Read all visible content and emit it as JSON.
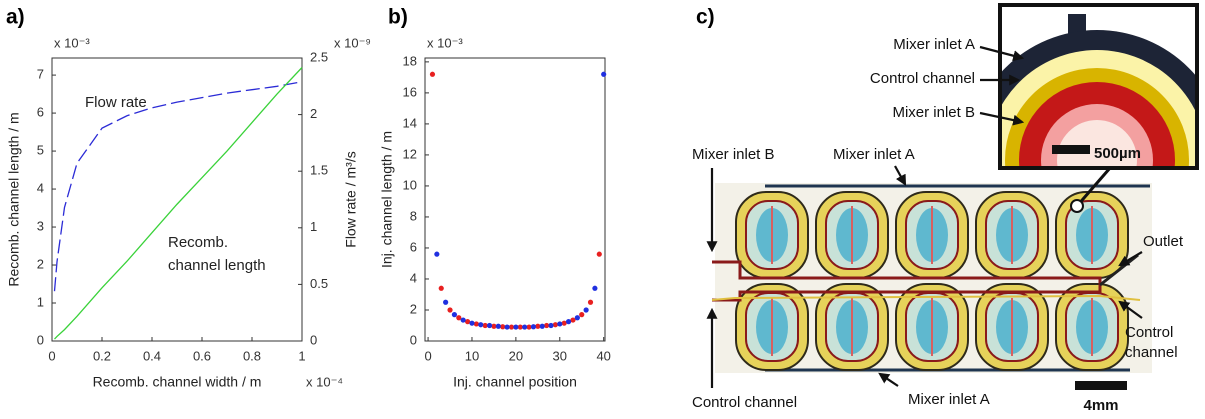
{
  "panel_labels": [
    "a)",
    "b)",
    "c)"
  ],
  "chart_data": [
    {
      "type": "line",
      "xlabel": "Recomb. channel width / m",
      "ylabel": "Recomb. channel length / m",
      "y2label": "Flow rate / m³/s",
      "x_exponent": "x 10⁻⁴",
      "y_exponent": "x 10⁻³",
      "y2_exponent": "x 10⁻⁹",
      "x": [
        0.01,
        0.02,
        0.05,
        0.1,
        0.2,
        0.3,
        0.4,
        0.5,
        0.6,
        0.7,
        0.8,
        0.9,
        1.0
      ],
      "xlim": [
        0,
        1
      ],
      "xticks": [
        0,
        0.2,
        0.4,
        0.6,
        0.8,
        1
      ],
      "ylim": [
        0,
        7.45
      ],
      "yticks": [
        0,
        1,
        2,
        3,
        4,
        5,
        6,
        7
      ],
      "y2lim": [
        0,
        2.5
      ],
      "y2ticks": [
        0,
        0.5,
        1,
        1.5,
        2,
        2.5
      ],
      "series": [
        {
          "label": [
            "Flow rate"
          ],
          "color": "#2b2bd6",
          "linestyle": "dashed",
          "axis": "y2",
          "values": [
            0.44,
            0.7,
            1.18,
            1.57,
            1.88,
            1.99,
            2.06,
            2.11,
            2.15,
            2.19,
            2.22,
            2.25,
            2.29
          ]
        },
        {
          "label": [
            "Recomb.",
            "channel length"
          ],
          "color": "#3ad23a",
          "linestyle": "solid",
          "values": [
            0.05,
            0.12,
            0.3,
            0.65,
            1.4,
            2.1,
            2.85,
            3.6,
            4.3,
            5.0,
            5.75,
            6.5,
            7.2
          ]
        }
      ]
    },
    {
      "type": "scatter",
      "xlabel": "Inj. channel position",
      "ylabel": "Inj. channel length / m",
      "y_exponent": "x 10⁻³",
      "xlim": [
        -0.7,
        40.3
      ],
      "xticks": [
        0,
        10,
        20,
        30,
        40
      ],
      "ylim": [
        0,
        18.25
      ],
      "yticks": [
        0,
        2,
        4,
        6,
        8,
        10,
        12,
        14,
        16,
        18
      ],
      "series": [
        {
          "color": "#e82020",
          "x": [
            1,
            3,
            5,
            7,
            9,
            11,
            13,
            15,
            17,
            19,
            21,
            23,
            25,
            27,
            29,
            31,
            33,
            35,
            37,
            39
          ],
          "values": [
            17.2,
            3.4,
            2.0,
            1.5,
            1.25,
            1.1,
            1.0,
            0.95,
            0.92,
            0.9,
            0.9,
            0.9,
            0.95,
            1.0,
            1.05,
            1.15,
            1.35,
            1.7,
            2.5,
            5.6
          ]
        },
        {
          "color": "#2030e0",
          "x": [
            2,
            4,
            6,
            8,
            10,
            12,
            14,
            16,
            18,
            20,
            22,
            24,
            26,
            28,
            30,
            32,
            34,
            36,
            38,
            40
          ],
          "values": [
            5.6,
            2.5,
            1.7,
            1.35,
            1.15,
            1.05,
            1.0,
            0.95,
            0.9,
            0.9,
            0.9,
            0.92,
            0.95,
            1.0,
            1.1,
            1.25,
            1.5,
            2.0,
            3.4,
            17.2
          ]
        }
      ]
    }
  ],
  "photo": {
    "inset_labels": [
      "Mixer inlet A",
      "Control channel",
      "Mixer inlet B"
    ],
    "inset_scale": "500µm",
    "labels": [
      "Mixer inlet B",
      "Mixer inlet A",
      "Outlet",
      "Control channel",
      "Mixer inlet A"
    ],
    "right_label": [
      "Control",
      "channel"
    ],
    "scale": "4mm"
  }
}
